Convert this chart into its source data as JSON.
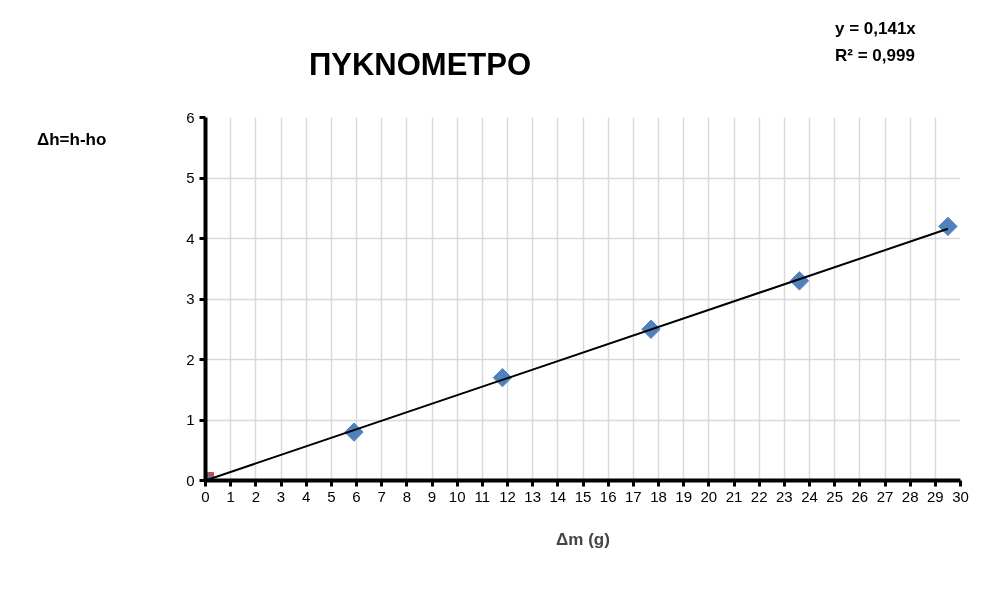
{
  "chart_data": {
    "type": "scatter",
    "title": "ΠΥΚΝΟΜΕΤΡΟ",
    "xlabel": "Δm (g)",
    "ylabel": "Δh=h-ho",
    "annotations": [
      "y = 0,141x",
      "R² = 0,999"
    ],
    "series": [
      {
        "marker": "diamond",
        "color": "#4f81bd",
        "x": [
          0,
          5.9,
          11.8,
          17.7,
          23.6,
          29.5
        ],
        "values": [
          0,
          0.8,
          1.7,
          2.5,
          3.3,
          4.2
        ]
      },
      {
        "marker": "square",
        "color": "#c0504d",
        "x": [
          0
        ],
        "values": [
          0
        ]
      },
      {
        "type": "line",
        "color": "#000000",
        "x": [
          0,
          29.5
        ],
        "values": [
          0,
          4.16
        ]
      }
    ],
    "xlim": [
      0,
      30
    ],
    "xticks": [
      0,
      1,
      2,
      3,
      4,
      5,
      6,
      7,
      8,
      9,
      10,
      11,
      12,
      13,
      14,
      15,
      16,
      17,
      18,
      19,
      20,
      21,
      22,
      23,
      24,
      25,
      26,
      27,
      28,
      29,
      30
    ],
    "ylim": [
      0,
      6
    ],
    "yticks": [
      0,
      1,
      2,
      3,
      4,
      5,
      6
    ],
    "grid": true
  }
}
